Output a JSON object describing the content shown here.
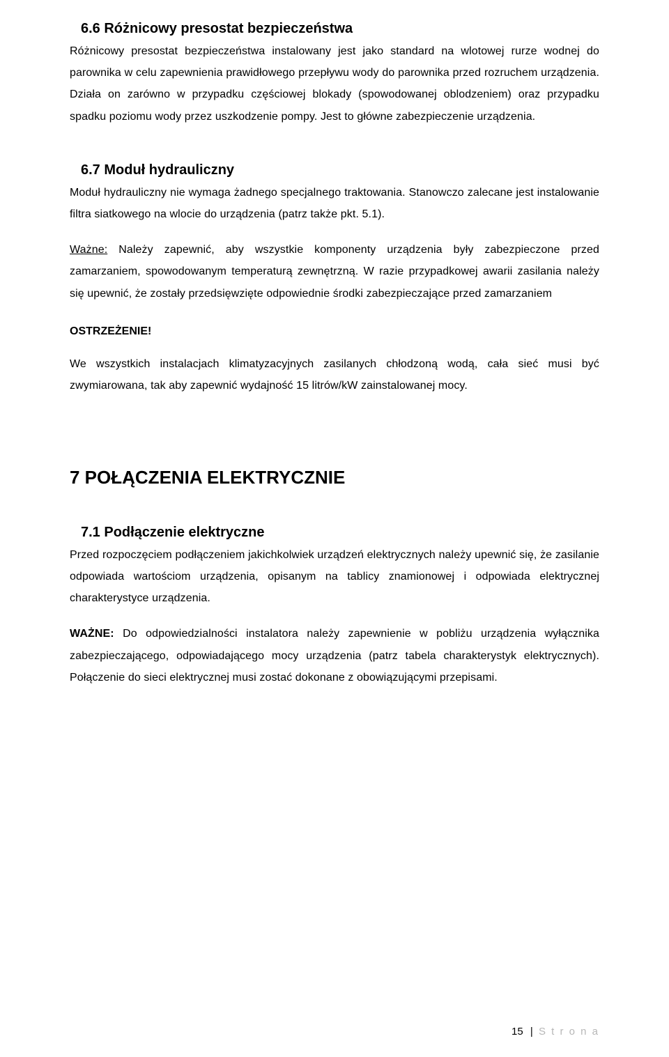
{
  "section66": {
    "heading": "6.6  Różnicowy  presostat bezpieczeństwa",
    "body": "Różnicowy presostat bezpieczeństwa instalowany jest jako standard na wlotowej rurze wodnej do parownika w celu zapewnienia prawidłowego przepływu wody do parownika przed rozruchem urządzenia. Działa on zarówno w przypadku częściowej blokady (spowodowanej oblodzeniem) oraz przypadku spadku poziomu wody przez uszkodzenie pompy. Jest to główne zabezpieczenie urządzenia."
  },
  "section67": {
    "heading": "6.7  Moduł hydrauliczny",
    "body1": "Moduł hydrauliczny nie wymaga żadnego specjalnego traktowania. Stanowczo zalecane jest instalowanie filtra siatkowego na wlocie do urządzenia (patrz także pkt. 5.1).",
    "body2_prefix": "Ważne:",
    "body2_rest": " Należy zapewnić, aby wszystkie komponenty urządzenia były zabezpieczone przed zamarzaniem, spowodowanym temperaturą zewnętrzną. W razie przypadkowej awarii zasilania należy się upewnić, że zostały przedsięwzięte odpowiednie środki zabezpieczające przed zamarzaniem",
    "warn_label": "OSTRZEŻENIE!",
    "body3": "We wszystkich instalacjach klimatyzacyjnych zasilanych chłodzoną wodą, cała sieć musi być zwymiarowana, tak aby zapewnić wydajność 15 litrów/kW zainstalowanej mocy."
  },
  "section7": {
    "heading": "7  POŁĄCZENIA ELEKTRYCZNIE"
  },
  "section71": {
    "heading": "7.1  Podłączenie elektryczne",
    "body1": "Przed rozpoczęciem podłączeniem jakichkolwiek urządzeń elektrycznych należy upewnić się, że zasilanie odpowiada wartościom urządzenia, opisanym na tablicy znamionowej i odpowiada elektrycznej charakterystyce urządzenia.",
    "body2_prefix": "WAŻNE:",
    "body2_rest": " Do odpowiedzialności instalatora należy zapewnienie w pobliżu urządzenia wyłącznika zabezpieczającego, odpowiadającego mocy urządzenia (patrz tabela charakterystyk elektrycznych). Połączenie do sieci elektrycznej musi zostać dokonane z obowiązującymi przepisami."
  },
  "footer": {
    "page_number": "15",
    "label": "S t r o n a"
  }
}
